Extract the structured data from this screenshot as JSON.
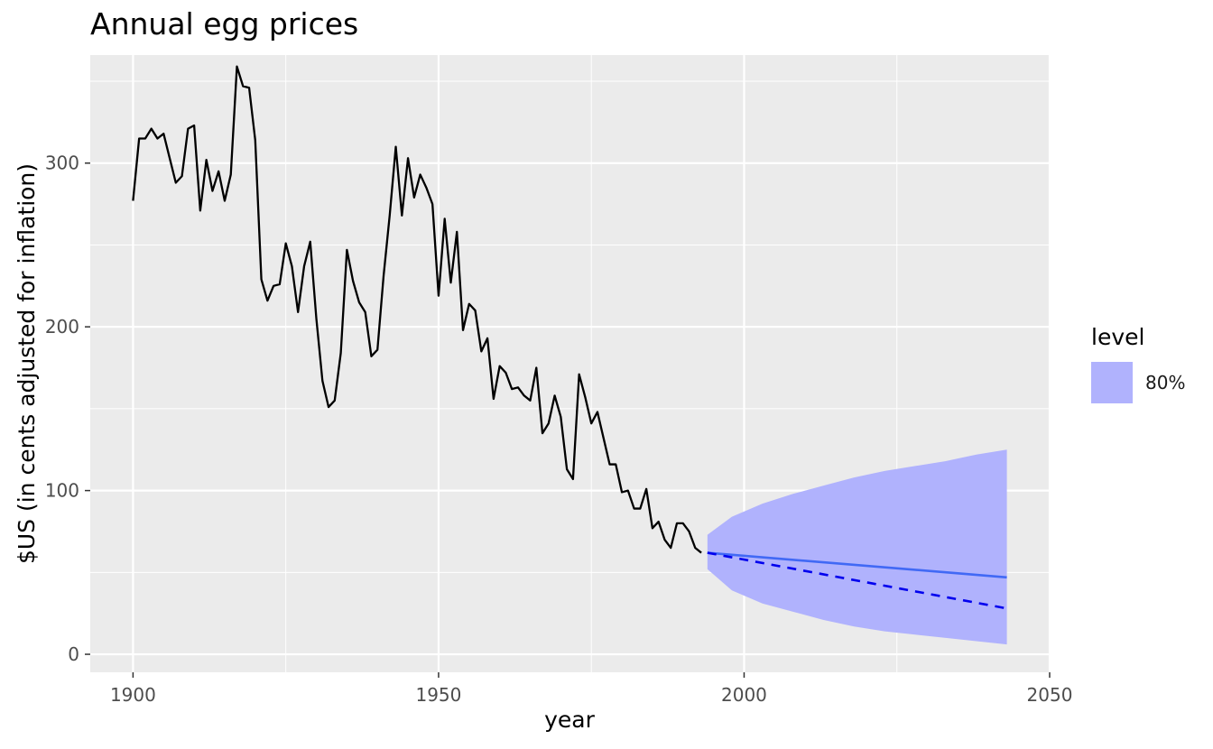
{
  "chart_data": {
    "type": "line",
    "title": "Annual egg prices",
    "xlabel": "year",
    "ylabel": "$US (in cents adjusted for inflation)",
    "xlim": [
      1893,
      2050
    ],
    "ylim": [
      -11,
      366
    ],
    "x_ticks": [
      1900,
      1950,
      2000,
      2050
    ],
    "y_ticks": [
      0,
      100,
      200,
      300
    ],
    "x_tick_labels": [
      "1900",
      "1950",
      "2000",
      "2050"
    ],
    "y_tick_labels": [
      "0",
      "100",
      "200",
      "300"
    ],
    "grid": true,
    "legend": {
      "title": "level",
      "placement": "right",
      "entries": [
        {
          "label": "80%",
          "color": "#b0b2fd"
        }
      ]
    },
    "colors": {
      "panel_background": "#ebebeb",
      "grid": "#ffffff",
      "observed_line": "#000000",
      "forecast_line": "#4169f5",
      "forecast_dashed": "#0000ee",
      "interval_fill": "#b0b2fd"
    },
    "series": [
      {
        "role": "observed",
        "x": [
          1900,
          1901,
          1902,
          1903,
          1904,
          1905,
          1906,
          1907,
          1908,
          1909,
          1910,
          1911,
          1912,
          1913,
          1914,
          1915,
          1916,
          1917,
          1918,
          1919,
          1920,
          1921,
          1922,
          1923,
          1924,
          1925,
          1926,
          1927,
          1928,
          1929,
          1930,
          1931,
          1932,
          1933,
          1934,
          1935,
          1936,
          1937,
          1938,
          1939,
          1940,
          1941,
          1942,
          1943,
          1944,
          1945,
          1946,
          1947,
          1948,
          1949,
          1950,
          1951,
          1952,
          1953,
          1954,
          1955,
          1956,
          1957,
          1958,
          1959,
          1960,
          1961,
          1962,
          1963,
          1964,
          1965,
          1966,
          1967,
          1968,
          1969,
          1970,
          1971,
          1972,
          1973,
          1974,
          1975,
          1976,
          1977,
          1978,
          1979,
          1980,
          1981,
          1982,
          1983,
          1984,
          1985,
          1986,
          1987,
          1988,
          1989,
          1990,
          1991,
          1992,
          1993
        ],
        "values": [
          277,
          315,
          315,
          321,
          315,
          318,
          303,
          288,
          292,
          321,
          323,
          271,
          302,
          283,
          295,
          277,
          293,
          359,
          347,
          346,
          314,
          229,
          216,
          225,
          226,
          251,
          237,
          209,
          237,
          252,
          205,
          167,
          151,
          155,
          184,
          247,
          228,
          215,
          209,
          182,
          186,
          231,
          268,
          310,
          268,
          303,
          279,
          293,
          285,
          275,
          219,
          266,
          227,
          258,
          198,
          214,
          210,
          185,
          193,
          156,
          176,
          172,
          162,
          163,
          158,
          155,
          175,
          135,
          141,
          158,
          145,
          113,
          107,
          171,
          157,
          141,
          148,
          132,
          116,
          116,
          99,
          100,
          89,
          89,
          101,
          77,
          81,
          70,
          65,
          80,
          80,
          75,
          65,
          62
        ]
      },
      {
        "role": "forecast-mean",
        "x": [
          1994,
          2043
        ],
        "values": [
          62,
          47
        ]
      },
      {
        "role": "forecast-median",
        "x": [
          1994,
          2043
        ],
        "values": [
          62,
          28
        ]
      }
    ],
    "interval": {
      "level": "80%",
      "x": [
        1994,
        1998,
        2003,
        2008,
        2013,
        2018,
        2023,
        2028,
        2033,
        2038,
        2043
      ],
      "upper": [
        73,
        84,
        92,
        98,
        103,
        108,
        112,
        115,
        118,
        122,
        125
      ],
      "lower": [
        52,
        39,
        31,
        26,
        21,
        17,
        14,
        12,
        10,
        8,
        6
      ]
    }
  }
}
